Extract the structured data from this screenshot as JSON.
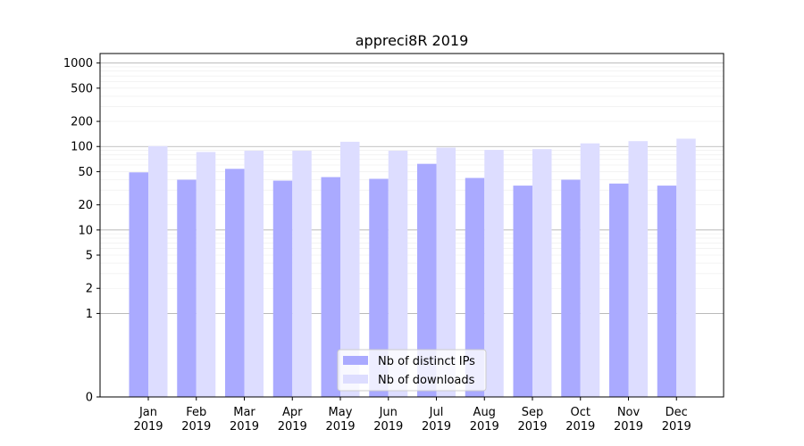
{
  "chart_data": {
    "type": "bar",
    "title": "appreci8R 2019",
    "xlabel": "",
    "ylabel": "",
    "yscale": "symlog",
    "ylim": [
      0,
      1300
    ],
    "yticks": [
      0,
      1,
      2,
      5,
      10,
      20,
      50,
      100,
      200,
      500,
      1000
    ],
    "ytick_labels": [
      "0",
      "1",
      "2",
      "5",
      "10",
      "20",
      "50",
      "100",
      "200",
      "500",
      "1000"
    ],
    "categories": [
      "Jan",
      "Feb",
      "Mar",
      "Apr",
      "May",
      "Jun",
      "Jul",
      "Aug",
      "Sep",
      "Oct",
      "Nov",
      "Dec"
    ],
    "category_year": "2019",
    "series": [
      {
        "name": "Nb of distinct IPs",
        "color": "#aaaaff",
        "values": [
          49,
          40,
          54,
          39,
          43,
          41,
          62,
          42,
          34,
          40,
          36,
          34
        ]
      },
      {
        "name": "Nb of downloads",
        "color": "#ddddff",
        "values": [
          101,
          86,
          89,
          89,
          114,
          89,
          97,
          91,
          93,
          109,
          116,
          124
        ]
      }
    ],
    "grid": true,
    "legend_position": "lower-center"
  }
}
